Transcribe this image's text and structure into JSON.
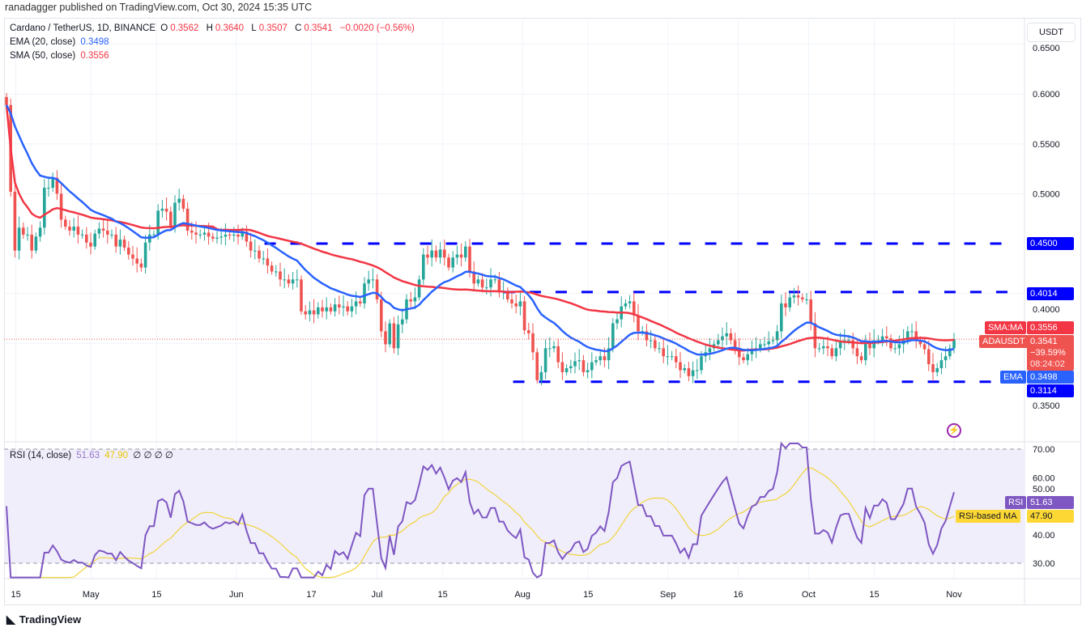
{
  "header": {
    "published": "ranadagger published on TradingView.com, Oct 30, 2024 15:35 UTC"
  },
  "legend": {
    "symbol": "Cardano / TetherUS, 1D, BINANCE",
    "o_label": "O",
    "o": "0.3562",
    "h_label": "H",
    "h": "0.3640",
    "l_label": "L",
    "l": "0.3507",
    "c_label": "C",
    "c": "0.3541",
    "change": "−0.0020 (−0.56%)",
    "ema_label": "EMA (20, close)",
    "ema": "0.3498",
    "sma_label": "SMA (50, close)",
    "sma": "0.3556",
    "rsi_label": "RSI (14, close)",
    "rsi": "51.63",
    "rsi_ma": "47.90",
    "rsi_extra": "∅ ∅ ∅ ∅"
  },
  "currency_button": "USDT",
  "price_tags": {
    "sma_name": "SMA:MA",
    "sma_value": "0.3556",
    "symbol_name": "ADAUSDT",
    "price": "0.3541",
    "pct": "−39.59%",
    "countdown": "08:24:02",
    "ema_name": "EMA",
    "ema_value": "0.3498",
    "level_450": "0.4500",
    "level_4014": "0.4014",
    "level_3114": "0.3114",
    "rsi_name": "RSI",
    "rsi_value": "51.63",
    "rsi_ma_name": "RSI-based MA",
    "rsi_ma_value": "47.90"
  },
  "footer": {
    "brand": "TradingView"
  },
  "colors": {
    "up": "#26a69a",
    "down": "#ef5350",
    "ema": "#2962ff",
    "sma": "#f23645",
    "levels": "#0000ff",
    "rsi": "#7e57c2",
    "rsi_ma": "#f0d43a"
  },
  "chart_data": [
    {
      "type": "candlestick",
      "title": "Cardano / TetherUS, 1D, BINANCE",
      "ylim": [
        0.27,
        0.67
      ],
      "y_ticks": [
        "0.6500",
        "0.6000",
        "0.5500",
        "0.5000",
        "0.4000",
        "0.3500"
      ],
      "y_tick_values": [
        0.65,
        0.6,
        0.55,
        0.5,
        0.4,
        0.35
      ],
      "x_ticks": [
        "15",
        "May",
        "15",
        "Jun",
        "17",
        "Jul",
        "15",
        "Aug",
        "15",
        "Sep",
        "16",
        "Oct",
        "15",
        "Nov"
      ],
      "x_tick_day_index": [
        2,
        18,
        32,
        49,
        65,
        79,
        93,
        110,
        124,
        141,
        156,
        171,
        185,
        202
      ],
      "horizontal_levels": [
        {
          "value": 0.45,
          "from_day": 55
        },
        {
          "value": 0.4014,
          "from_day": 106
        },
        {
          "value": 0.3114,
          "from_day": 108
        }
      ],
      "closes": [
        0.589,
        0.502,
        0.443,
        0.466,
        0.459,
        0.459,
        0.443,
        0.457,
        0.466,
        0.506,
        0.506,
        0.516,
        0.5,
        0.474,
        0.467,
        0.463,
        0.467,
        0.459,
        0.459,
        0.451,
        0.447,
        0.46,
        0.465,
        0.463,
        0.459,
        0.459,
        0.447,
        0.454,
        0.446,
        0.439,
        0.435,
        0.43,
        0.426,
        0.451,
        0.459,
        0.459,
        0.483,
        0.485,
        0.482,
        0.467,
        0.491,
        0.495,
        0.485,
        0.463,
        0.461,
        0.459,
        0.459,
        0.461,
        0.457,
        0.455,
        0.456,
        0.457,
        0.459,
        0.458,
        0.459,
        0.457,
        0.462,
        0.452,
        0.443,
        0.443,
        0.435,
        0.435,
        0.428,
        0.422,
        0.422,
        0.414,
        0.414,
        0.41,
        0.414,
        0.414,
        0.382,
        0.379,
        0.383,
        0.379,
        0.386,
        0.382,
        0.386,
        0.382,
        0.389,
        0.386,
        0.387,
        0.382,
        0.387,
        0.392,
        0.39,
        0.41,
        0.414,
        0.414,
        0.394,
        0.362,
        0.349,
        0.37,
        0.345,
        0.369,
        0.374,
        0.394,
        0.392,
        0.396,
        0.414,
        0.439,
        0.436,
        0.443,
        0.436,
        0.444,
        0.436,
        0.426,
        0.436,
        0.439,
        0.436,
        0.447,
        0.422,
        0.41,
        0.414,
        0.406,
        0.406,
        0.414,
        0.414,
        0.402,
        0.402,
        0.394,
        0.39,
        0.387,
        0.392,
        0.363,
        0.36,
        0.341,
        0.313,
        0.321,
        0.345,
        0.345,
        0.347,
        0.331,
        0.321,
        0.325,
        0.327,
        0.332,
        0.333,
        0.321,
        0.323,
        0.331,
        0.333,
        0.337,
        0.333,
        0.345,
        0.37,
        0.374,
        0.387,
        0.39,
        0.392,
        0.378,
        0.362,
        0.362,
        0.353,
        0.353,
        0.345,
        0.345,
        0.337,
        0.337,
        0.337,
        0.331,
        0.323,
        0.325,
        0.317,
        0.323,
        0.323,
        0.337,
        0.341,
        0.345,
        0.349,
        0.353,
        0.357,
        0.36,
        0.353,
        0.345,
        0.336,
        0.333,
        0.339,
        0.344,
        0.345,
        0.349,
        0.349,
        0.352,
        0.353,
        0.362,
        0.39,
        0.386,
        0.396,
        0.398,
        0.396,
        0.394,
        0.394,
        0.37,
        0.345,
        0.345,
        0.347,
        0.345,
        0.337,
        0.345,
        0.352,
        0.353,
        0.353,
        0.345,
        0.337,
        0.333,
        0.352,
        0.345,
        0.353,
        0.353,
        0.357,
        0.355,
        0.345,
        0.345,
        0.349,
        0.353,
        0.362,
        0.362,
        0.353,
        0.349,
        0.344,
        0.329,
        0.321,
        0.325,
        0.333,
        0.337,
        0.345,
        0.3541
      ],
      "indicators": [
        "EMA 20",
        "SMA 50"
      ]
    },
    {
      "type": "line",
      "title": "RSI (14, close)",
      "ylim": [
        25,
        72
      ],
      "y_ticks": [
        "70.00",
        "60.00",
        "50.00",
        "40.00",
        "30.00"
      ],
      "y_tick_values": [
        70,
        60,
        50,
        40,
        30
      ],
      "band": [
        30,
        70
      ],
      "series": [
        {
          "name": "RSI"
        },
        {
          "name": "RSI-based MA"
        }
      ]
    }
  ]
}
